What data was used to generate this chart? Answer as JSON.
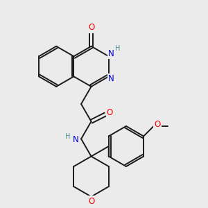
{
  "bg_color": "#ebebeb",
  "bond_color": "#1a1a1a",
  "bond_width": 1.4,
  "atom_colors": {
    "O": "#ff0000",
    "N": "#0000cc",
    "H_label": "#4a9090",
    "C": "#1a1a1a"
  },
  "font_size_atom": 8.5,
  "font_size_H": 7.0
}
